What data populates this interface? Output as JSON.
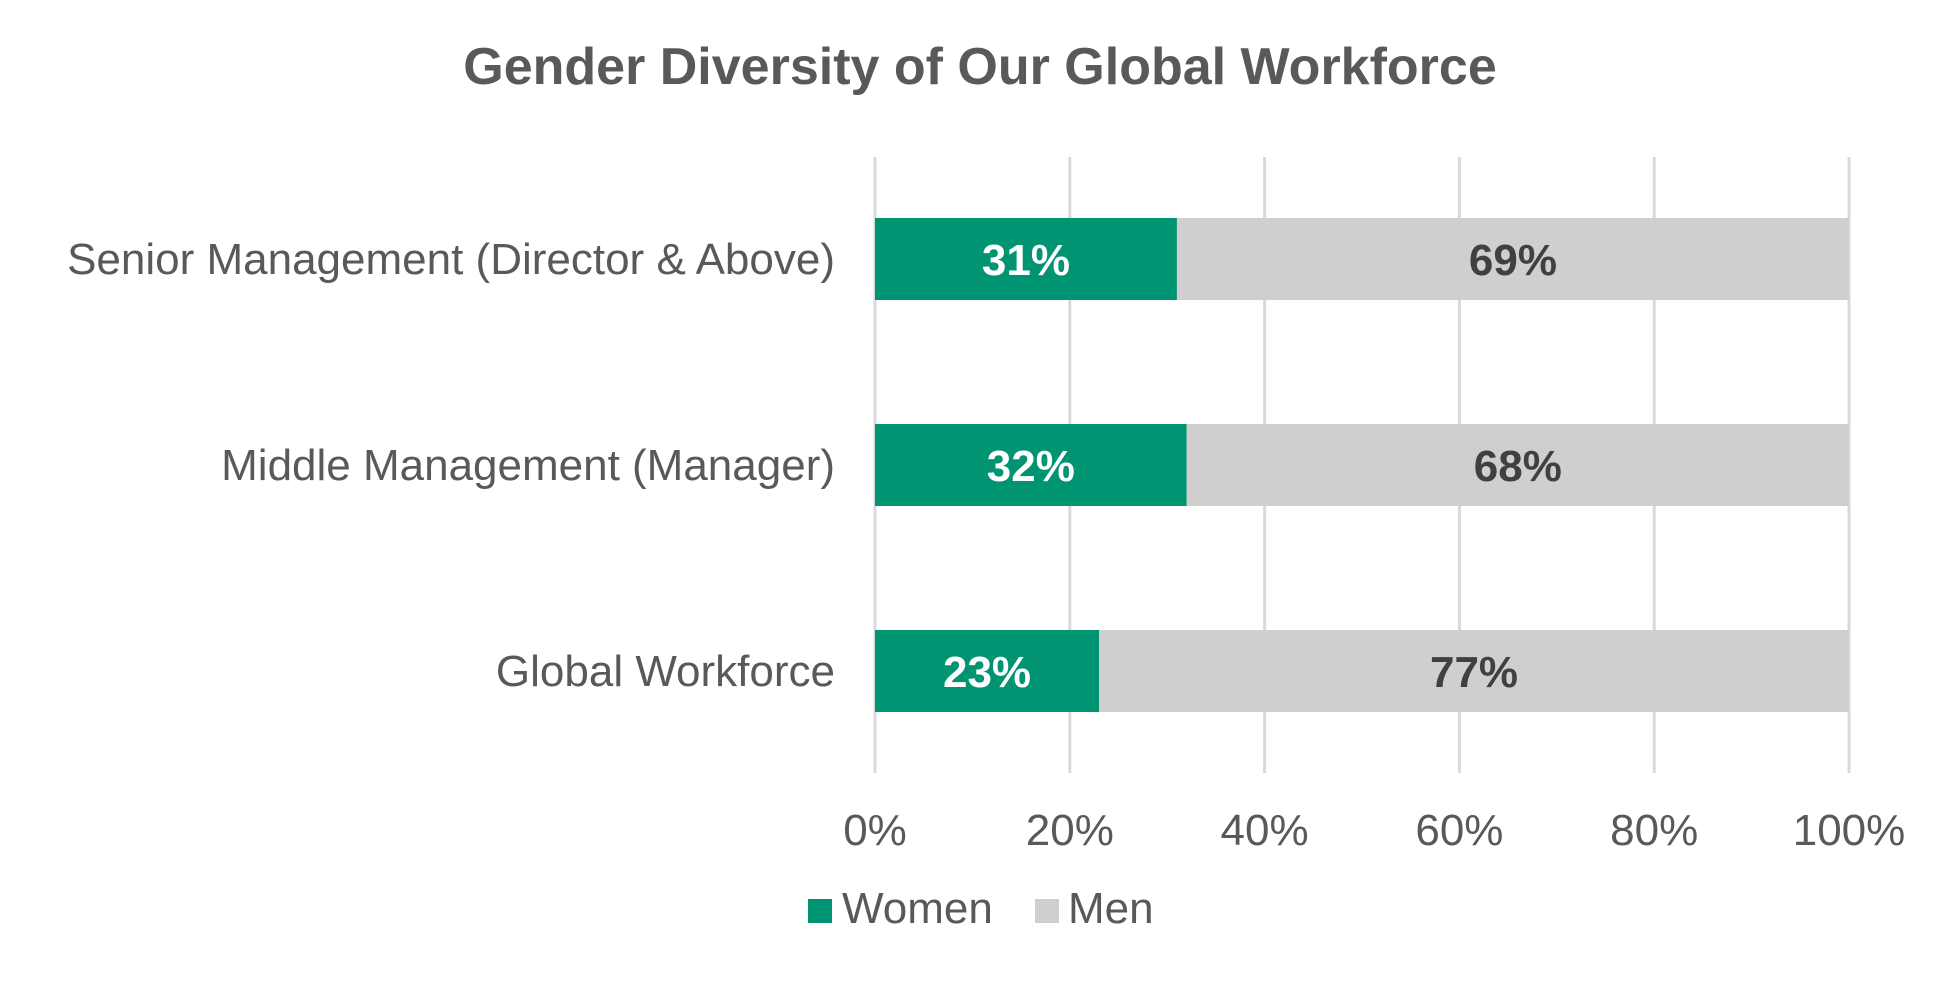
{
  "chart_data": {
    "type": "bar",
    "orientation": "horizontal",
    "stacked": true,
    "title": "Gender Diversity of Our Global Workforce",
    "categories": [
      "Senior Management (Director & Above)",
      "Middle Management (Manager)",
      "Global Workforce"
    ],
    "series": [
      {
        "name": "Women",
        "color": "#009473",
        "label_color": "#ffffff",
        "values": [
          31,
          32,
          23
        ],
        "labels": [
          "31%",
          "32%",
          "23%"
        ]
      },
      {
        "name": "Men",
        "color": "#d0cece",
        "label_color": "#404040",
        "values": [
          69,
          68,
          77
        ],
        "labels": [
          "69%",
          "68%",
          "77%"
        ]
      }
    ],
    "xlim": [
      0,
      100
    ],
    "x_ticks": [
      0,
      20,
      40,
      60,
      80,
      100
    ],
    "x_tick_labels": [
      "0%",
      "20%",
      "40%",
      "60%",
      "80%",
      "100%"
    ],
    "xlabel": "",
    "ylabel": "",
    "grid": true,
    "legend_position": "bottom"
  }
}
